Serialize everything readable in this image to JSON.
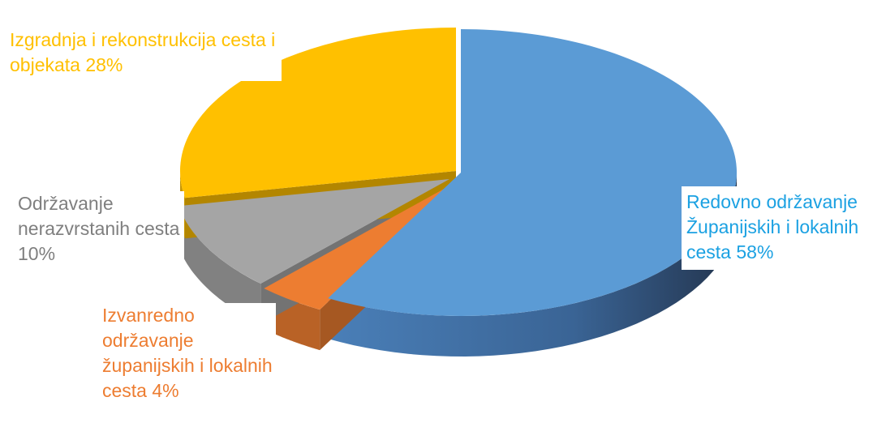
{
  "chart_data": {
    "type": "pie",
    "style": "3d-exploded",
    "legend": "none",
    "slices": [
      {
        "name": "Redovno održavanje Županijskih i lokalnih cesta",
        "value": 58,
        "label_lines": [
          "Redovno održavanje",
          "Županijskih i lokalnih",
          "cesta 58%"
        ],
        "color": "#5B9BD5",
        "label_color": "#1BA1E2"
      },
      {
        "name": "Izvanredno održavanje županijskih i lokalnih cesta",
        "value": 4,
        "label_lines": [
          "Izvanredno",
          "održavanje",
          "županijskih i lokalnih",
          "cesta 4%"
        ],
        "color": "#ED7D31",
        "label_color": "#ED7D31"
      },
      {
        "name": "Održavanje nerazvrstanih cesta",
        "value": 10,
        "label_lines": [
          "Održavanje",
          "nerazvrstanih cesta",
          "10%"
        ],
        "color": "#A5A5A5",
        "label_color": "#7F7F7F"
      },
      {
        "name": "Izgradnja i rekonstrukcija cesta i objekata",
        "value": 28,
        "label_lines": [
          "Izgradnja i rekonstrukcija cesta i",
          "objekata 28%"
        ],
        "color": "#FFC000",
        "label_color": "#FFC000"
      }
    ]
  }
}
